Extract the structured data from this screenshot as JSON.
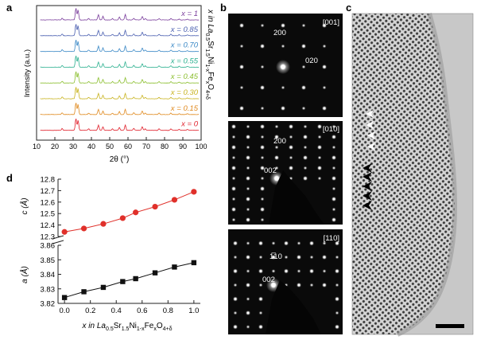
{
  "panels": {
    "a": "a",
    "b": "b",
    "c": "c",
    "d": "d"
  },
  "panel_b": {
    "p1": {
      "zone": "[001]",
      "spots": [
        "200",
        "020"
      ]
    },
    "p2": {
      "zone": "[010]",
      "spots": [
        "200",
        "002"
      ]
    },
    "p3": {
      "zone": "[110]",
      "spots": [
        "1̅10",
        "002"
      ]
    }
  },
  "panel_a_side_label": {
    "pre": "x in La",
    "s1": "0.5",
    "sr": "Sr",
    "s2": "1.5",
    "ni": "Ni",
    "s3": "1-x",
    "fe": "Fe",
    "s4": "x",
    "o": "O",
    "s5": "4+δ"
  },
  "chart_data": [
    {
      "type": "line",
      "title": "",
      "xlabel": "2θ (°)",
      "ylabel": "Intensity (a.u.)",
      "xlim": [
        10,
        100
      ],
      "xticks": [
        10,
        20,
        30,
        40,
        50,
        60,
        70,
        80,
        90,
        100
      ],
      "series": [
        {
          "name": "x = 1",
          "color": "#7a3d9c"
        },
        {
          "name": "x = 0.85",
          "color": "#4a5fb0"
        },
        {
          "name": "x = 0.70",
          "color": "#3a88c6"
        },
        {
          "name": "x = 0.55",
          "color": "#2bb08f"
        },
        {
          "name": "x = 0.45",
          "color": "#8bbf2f"
        },
        {
          "name": "x = 0.30",
          "color": "#c8b31e"
        },
        {
          "name": "x = 0.15",
          "color": "#e08a1f"
        },
        {
          "name": "x = 0",
          "color": "#e01f2a"
        }
      ],
      "peaks": [
        [
          31.5,
          1.0
        ],
        [
          32.7,
          0.85
        ],
        [
          24.0,
          0.15
        ],
        [
          38.5,
          0.12
        ],
        [
          43.8,
          0.45
        ],
        [
          46.3,
          0.3
        ],
        [
          51.5,
          0.12
        ],
        [
          55.3,
          0.25
        ],
        [
          58.5,
          0.45
        ],
        [
          63.2,
          0.15
        ],
        [
          67.8,
          0.3
        ],
        [
          69.5,
          0.12
        ],
        [
          77.0,
          0.12
        ],
        [
          83.5,
          0.12
        ],
        [
          88.0,
          0.08
        ],
        [
          92.5,
          0.08
        ]
      ],
      "legend_position": "right"
    },
    {
      "type": "line",
      "xlabel_parts": {
        "pre": "x in La",
        "s1": "0.5",
        "sr": "Sr",
        "s2": "1.5",
        "ni": "Ni",
        "s3": "1-x",
        "fe": "Fe",
        "s4": "x",
        "o": "O",
        "s5": "4+δ"
      },
      "x": [
        0,
        0.15,
        0.3,
        0.45,
        0.55,
        0.7,
        0.85,
        1.0
      ],
      "xticks": [
        "0.0",
        "0.2",
        "0.4",
        "0.6",
        "0.8",
        "1.0"
      ],
      "xtick_values": [
        0,
        0.2,
        0.4,
        0.6,
        0.8,
        1.0
      ],
      "xlim": [
        -0.05,
        1.05
      ],
      "c_axis": {
        "ylabel": "c (Å)",
        "ylim": [
          12.3,
          12.8
        ],
        "yticks": [
          "12.3",
          "12.4",
          "12.5",
          "12.6",
          "12.7",
          "12.8"
        ],
        "ytick_values": [
          12.3,
          12.4,
          12.5,
          12.6,
          12.7,
          12.8
        ],
        "values": [
          12.34,
          12.37,
          12.41,
          12.46,
          12.51,
          12.56,
          12.62,
          12.69
        ],
        "color": "#e0302a"
      },
      "a_axis": {
        "ylabel": "a (Å)",
        "ylim": [
          3.82,
          3.86
        ],
        "yticks": [
          "3.82",
          "3.83",
          "3.84",
          "3.85",
          "3.86"
        ],
        "ytick_values": [
          3.82,
          3.83,
          3.84,
          3.85,
          3.86
        ],
        "values": [
          3.824,
          3.828,
          3.831,
          3.835,
          3.837,
          3.841,
          3.845,
          3.848
        ],
        "color": "#111111"
      }
    }
  ]
}
